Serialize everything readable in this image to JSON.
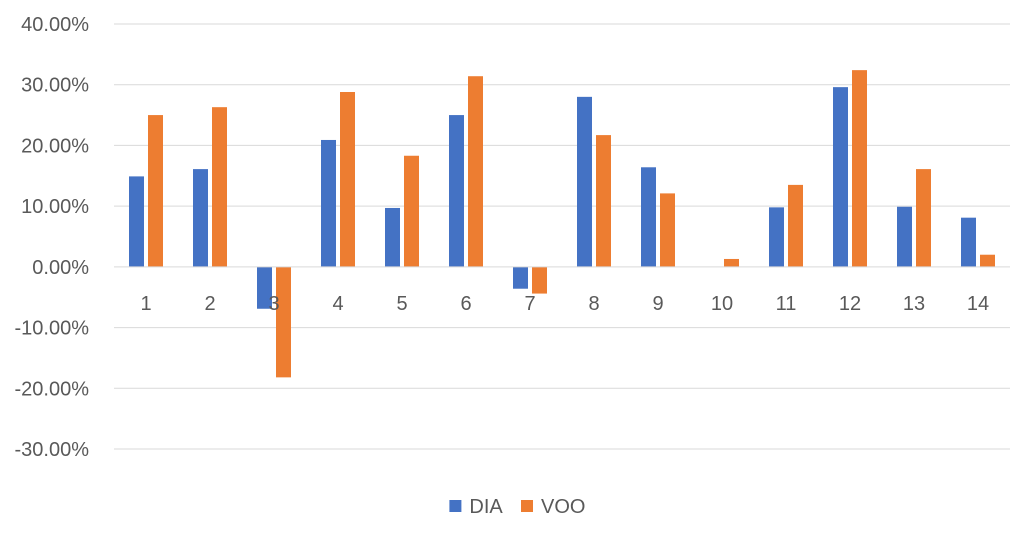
{
  "chart_data": {
    "type": "bar",
    "categories": [
      "1",
      "2",
      "3",
      "4",
      "5",
      "6",
      "7",
      "8",
      "9",
      "10",
      "11",
      "12",
      "13",
      "14"
    ],
    "series": [
      {
        "name": "DIA",
        "color": "#4472C4",
        "values": [
          0.149,
          0.161,
          -0.069,
          0.209,
          0.097,
          0.25,
          -0.036,
          0.28,
          0.164,
          0.0,
          0.098,
          0.296,
          0.099,
          0.081
        ]
      },
      {
        "name": "VOO",
        "color": "#ED7D31",
        "values": [
          0.25,
          0.263,
          -0.182,
          0.288,
          0.183,
          0.314,
          -0.044,
          0.217,
          0.121,
          0.013,
          0.135,
          0.324,
          0.161,
          0.02
        ]
      }
    ],
    "ylim": [
      -0.3,
      0.4
    ],
    "yticks": [
      0.4,
      0.3,
      0.2,
      0.1,
      0.0,
      -0.1,
      -0.2,
      -0.3
    ],
    "ytick_labels": [
      "40.00%",
      "30.00%",
      "20.00%",
      "10.00%",
      "0.00%",
      "-10.00%",
      "-20.00%",
      "-30.00%"
    ],
    "grid": true,
    "legend_position": "bottom",
    "title": "",
    "xlabel": "",
    "ylabel": ""
  }
}
